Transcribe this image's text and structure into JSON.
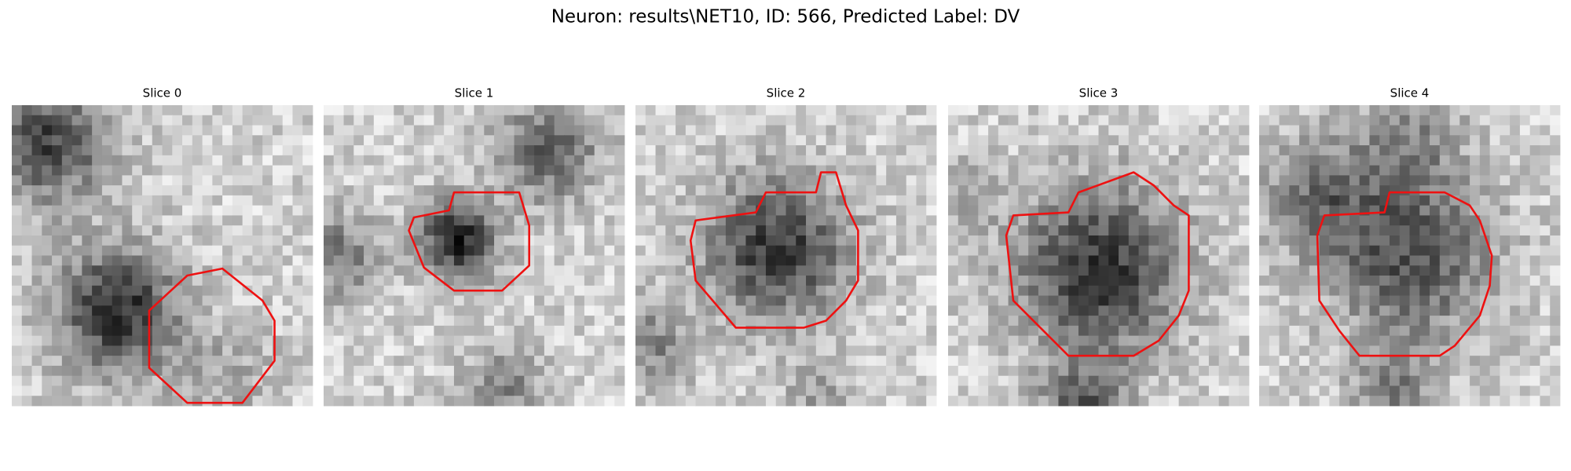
{
  "title": "Neuron: results\\NET10, ID: 566, Predicted Label: DV",
  "panels": [
    {
      "title": "Slice 0"
    },
    {
      "title": "Slice 1"
    },
    {
      "title": "Slice 2"
    },
    {
      "title": "Slice 3"
    },
    {
      "title": "Slice 4"
    }
  ]
}
